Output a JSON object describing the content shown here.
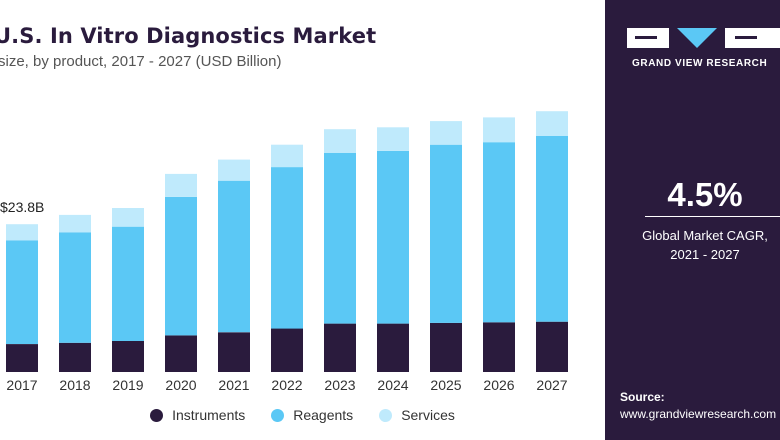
{
  "chart_data": {
    "type": "bar",
    "stacked": true,
    "title": "U.S. In Vitro Diagnostics Market",
    "subtitle": "size, by product, 2017 - 2027 (USD Billion)",
    "categories": [
      "2017",
      "2018",
      "2019",
      "2020",
      "2021",
      "2022",
      "2023",
      "2024",
      "2025",
      "2026",
      "2027"
    ],
    "series": [
      {
        "name": "Instruments",
        "color": "#2a1b3d",
        "values": [
          4.5,
          4.7,
          5.0,
          5.9,
          6.4,
          7.0,
          7.8,
          7.8,
          7.9,
          8.0,
          8.1
        ]
      },
      {
        "name": "Reagents",
        "color": "#5bc8f5",
        "values": [
          16.7,
          17.8,
          18.4,
          22.3,
          24.4,
          26.0,
          27.5,
          27.8,
          28.7,
          29.0,
          29.9
        ]
      },
      {
        "name": "Services",
        "color": "#bfeafc",
        "values": [
          2.6,
          2.8,
          3.0,
          3.7,
          3.4,
          3.6,
          3.8,
          3.8,
          3.8,
          4.0,
          4.0
        ]
      }
    ],
    "annotation": {
      "category": "2017",
      "text": "$23.8B"
    },
    "ylim": [
      0,
      47.5
    ],
    "grid": false,
    "legend": "bottom"
  },
  "panel": {
    "brand": "GRAND VIEW RESEARCH",
    "cagr_value": "4.5%",
    "cagr_label_line1": "Global Market CAGR,",
    "cagr_label_line2": "2021 - 2027",
    "source_label": "Source:",
    "source_url": "www.grandviewresearch.com"
  }
}
